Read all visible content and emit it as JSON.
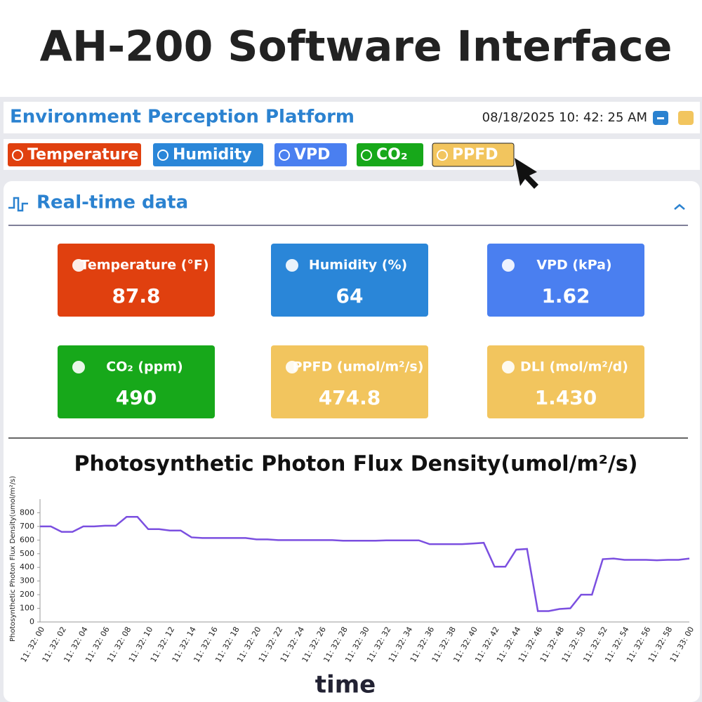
{
  "header": {
    "title": "AH-200 Software Interface"
  },
  "app": {
    "title": "Environment Perception Platform",
    "datetime": "08/18/2025 10:  42:  25 AM"
  },
  "tabs": [
    "Temperature",
    "Humidity",
    "VPD",
    "CO₂",
    "PPFD"
  ],
  "section": {
    "title": "Real-time data"
  },
  "cards": [
    {
      "label": "Temperature (°F)",
      "value": "87.8"
    },
    {
      "label": "Humidity (%)",
      "value": "64"
    },
    {
      "label": "VPD (kPa)",
      "value": "1.62"
    },
    {
      "label": "CO₂ (ppm)",
      "value": "490"
    },
    {
      "label": "PPFD (umol/m²/s)",
      "value": "474.8"
    },
    {
      "label": "DLI (mol/m²/d)",
      "value": "1.430"
    }
  ],
  "chart_data": {
    "type": "line",
    "title": "Photosynthetic Photon Flux Density(umol/m²/s)",
    "y_label": "Photosynthetic Photon Flux Density(umol/m²/s)",
    "x_label": "time",
    "categories": [
      "11: 32: 00",
      null,
      "11: 32: 02",
      null,
      "11: 32: 04",
      null,
      "11: 32: 06",
      null,
      "11: 32: 08",
      null,
      "11: 32: 10",
      null,
      "11: 32: 12",
      null,
      "11: 32: 14",
      null,
      "11: 32: 16",
      null,
      "11: 32: 18",
      null,
      "11: 32: 20",
      null,
      "11: 32: 22",
      null,
      "11: 32: 24",
      null,
      "11: 32: 26",
      null,
      "11: 32: 28",
      null,
      "11: 32: 30",
      null,
      "11: 32: 32",
      null,
      "11: 32: 34",
      null,
      "11: 32: 36",
      null,
      "11: 32: 38",
      null,
      "11: 32: 40",
      null,
      "11: 32: 42",
      null,
      "11: 32: 44",
      null,
      "11: 32: 46",
      null,
      "11: 32: 48",
      null,
      "11: 32: 50",
      null,
      "11: 32: 52",
      null,
      "11: 32: 54",
      null,
      "11: 32: 56",
      null,
      "11: 32: 58",
      null,
      "11: 33: 00"
    ],
    "values": [
      700,
      700,
      660,
      660,
      700,
      700,
      705,
      705,
      770,
      770,
      680,
      680,
      670,
      670,
      620,
      615,
      615,
      615,
      615,
      615,
      605,
      605,
      600,
      600,
      600,
      600,
      600,
      600,
      595,
      595,
      595,
      595,
      598,
      598,
      598,
      598,
      570,
      570,
      570,
      570,
      575,
      580,
      405,
      405,
      530,
      535,
      80,
      80,
      95,
      100,
      200,
      200,
      460,
      465,
      455,
      455,
      455,
      452,
      455,
      455,
      465
    ],
    "color": "#7b4fe0",
    "ylim": [
      0,
      900
    ],
    "yticks": [
      0,
      100,
      200,
      300,
      400,
      500,
      600,
      700,
      800
    ]
  }
}
